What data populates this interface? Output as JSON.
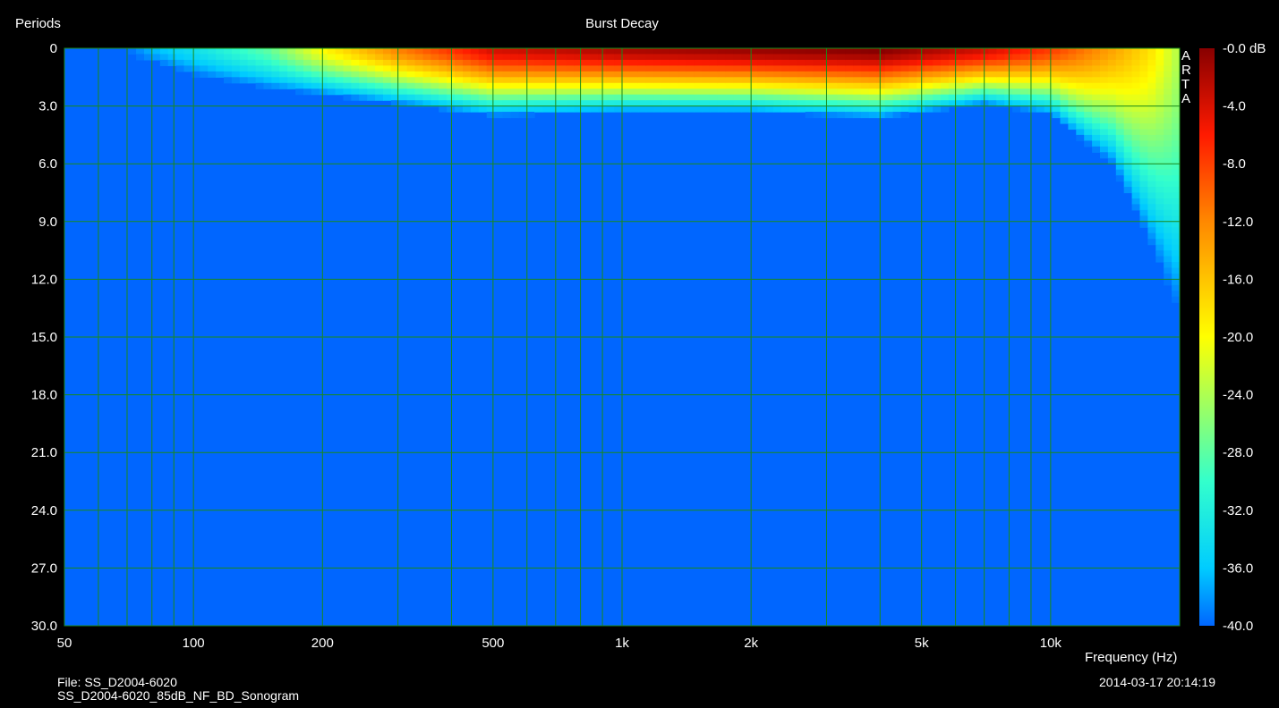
{
  "header": {
    "title": "Burst Decay",
    "y_axis_label": "Periods",
    "x_axis_label": "Frequency (Hz)"
  },
  "footer": {
    "file_line1": "File: SS_D2004-6020",
    "file_line2": "SS_D2004-6020_85dB_NF_BD_Sonogram",
    "timestamp": "2014-03-17  20:14:19"
  },
  "watermark": [
    "A",
    "R",
    "T",
    "A"
  ],
  "colorbar": {
    "labels": [
      "-0.0 dB",
      "-4.0",
      "-8.0",
      "-12.0",
      "-16.0",
      "-20.0",
      "-24.0",
      "-28.0",
      "-32.0",
      "-36.0",
      "-40.0"
    ],
    "min": -40,
    "max": 0
  },
  "colors": {
    "background": "#000000",
    "grid": "#1a8a1a",
    "floor": "#0066ff"
  },
  "chart_data": {
    "type": "heatmap",
    "title": "Burst Decay",
    "xlabel": "Frequency (Hz)",
    "ylabel": "Periods",
    "x_scale": "log",
    "xlim": [
      50,
      20000
    ],
    "ylim": [
      0,
      30
    ],
    "x_ticks": [
      {
        "value": 50,
        "label": "50"
      },
      {
        "value": 100,
        "label": "100"
      },
      {
        "value": 200,
        "label": "200"
      },
      {
        "value": 500,
        "label": "500"
      },
      {
        "value": 1000,
        "label": "1k"
      },
      {
        "value": 2000,
        "label": "2k"
      },
      {
        "value": 5000,
        "label": "5k"
      },
      {
        "value": 10000,
        "label": "10k"
      }
    ],
    "x_minor_gridlines": [
      60,
      70,
      80,
      90,
      300,
      400,
      600,
      700,
      800,
      900,
      3000,
      4000,
      6000,
      7000,
      8000,
      9000
    ],
    "y_ticks": [
      "0",
      "3.0",
      "6.0",
      "9.0",
      "12.0",
      "15.0",
      "18.0",
      "21.0",
      "24.0",
      "27.0",
      "30.0"
    ],
    "y_tick_values": [
      0,
      3,
      6,
      9,
      12,
      15,
      18,
      21,
      24,
      27,
      30
    ],
    "z_unit": "dB",
    "z_range": [
      -40,
      0
    ],
    "decay_profile": {
      "description_points": [
        {
          "freq": 50,
          "peak_db": -40,
          "decay_end_periods": 0
        },
        {
          "freq": 70,
          "peak_db": -40,
          "decay_end_periods": 0.3
        },
        {
          "freq": 80,
          "peak_db": -37,
          "decay_end_periods": 0.6
        },
        {
          "freq": 100,
          "peak_db": -34,
          "decay_end_periods": 1.3
        },
        {
          "freq": 150,
          "peak_db": -28,
          "decay_end_periods": 2.0
        },
        {
          "freq": 200,
          "peak_db": -20,
          "decay_end_periods": 2.3
        },
        {
          "freq": 300,
          "peak_db": -12,
          "decay_end_periods": 2.8
        },
        {
          "freq": 500,
          "peak_db": -4,
          "decay_end_periods": 3.4
        },
        {
          "freq": 1000,
          "peak_db": -2,
          "decay_end_periods": 3.2
        },
        {
          "freq": 2000,
          "peak_db": -1,
          "decay_end_periods": 3.2
        },
        {
          "freq": 4000,
          "peak_db": 0,
          "decay_end_periods": 3.5
        },
        {
          "freq": 7000,
          "peak_db": -4,
          "decay_end_periods": 2.8
        },
        {
          "freq": 10000,
          "peak_db": -8,
          "decay_end_periods": 3.3
        },
        {
          "freq": 14000,
          "peak_db": -14,
          "decay_end_periods": 6.0
        },
        {
          "freq": 17000,
          "peak_db": -18,
          "decay_end_periods": 10.0
        },
        {
          "freq": 20000,
          "peak_db": -24,
          "decay_end_periods": 13.8
        }
      ]
    }
  }
}
